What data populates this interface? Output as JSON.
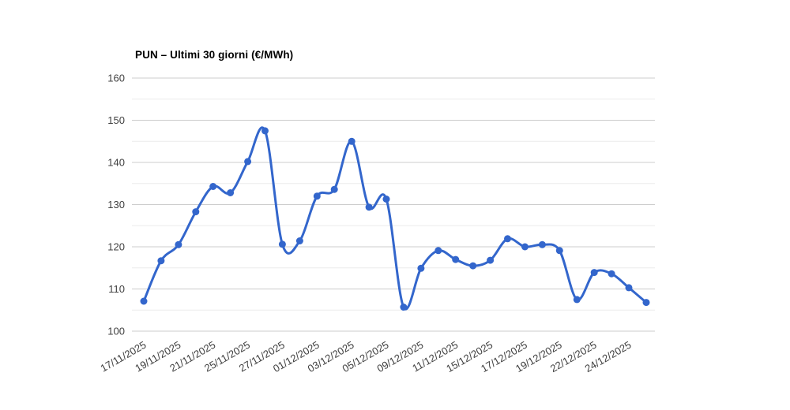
{
  "chart_data": {
    "type": "line",
    "title": "PUN – Ultimi 30 giorni (€/MWh)",
    "unit": "€/MWh",
    "legend": "none",
    "grid": true,
    "ylim": [
      100,
      160
    ],
    "y_ticks": [
      100,
      110,
      120,
      130,
      140,
      150,
      160
    ],
    "y_minor_ticks": [
      105,
      115,
      125,
      135,
      145,
      155
    ],
    "x_tick_labels": [
      "17/11/2025",
      "19/11/2025",
      "21/11/2025",
      "25/11/2025",
      "27/11/2025",
      "01/12/2025",
      "03/12/2025",
      "05/12/2025",
      "09/12/2025",
      "11/12/2025",
      "15/12/2025",
      "17/12/2025",
      "19/12/2025",
      "22/12/2025",
      "24/12/2025"
    ],
    "x_tick_point_indices": [
      0,
      2,
      4,
      6,
      8,
      10,
      12,
      14,
      16,
      18,
      20,
      22,
      24,
      26,
      28
    ],
    "values": [
      107.1,
      116.7,
      120.5,
      128.3,
      134.3,
      132.8,
      140.2,
      147.5,
      120.6,
      121.4,
      132.0,
      133.6,
      145.0,
      129.4,
      131.3,
      105.7,
      114.9,
      119.1,
      117.0,
      115.5,
      116.8,
      121.9,
      120.0,
      120.5,
      119.1,
      107.5,
      113.9,
      113.6,
      110.3,
      106.8
    ],
    "series_color": "#3366cc",
    "major_grid_color": "#cccccc",
    "minor_grid_color": "#ebebeb",
    "axis_text_color": "#404040",
    "title_color": "#000000",
    "background_color": "#ffffff"
  }
}
